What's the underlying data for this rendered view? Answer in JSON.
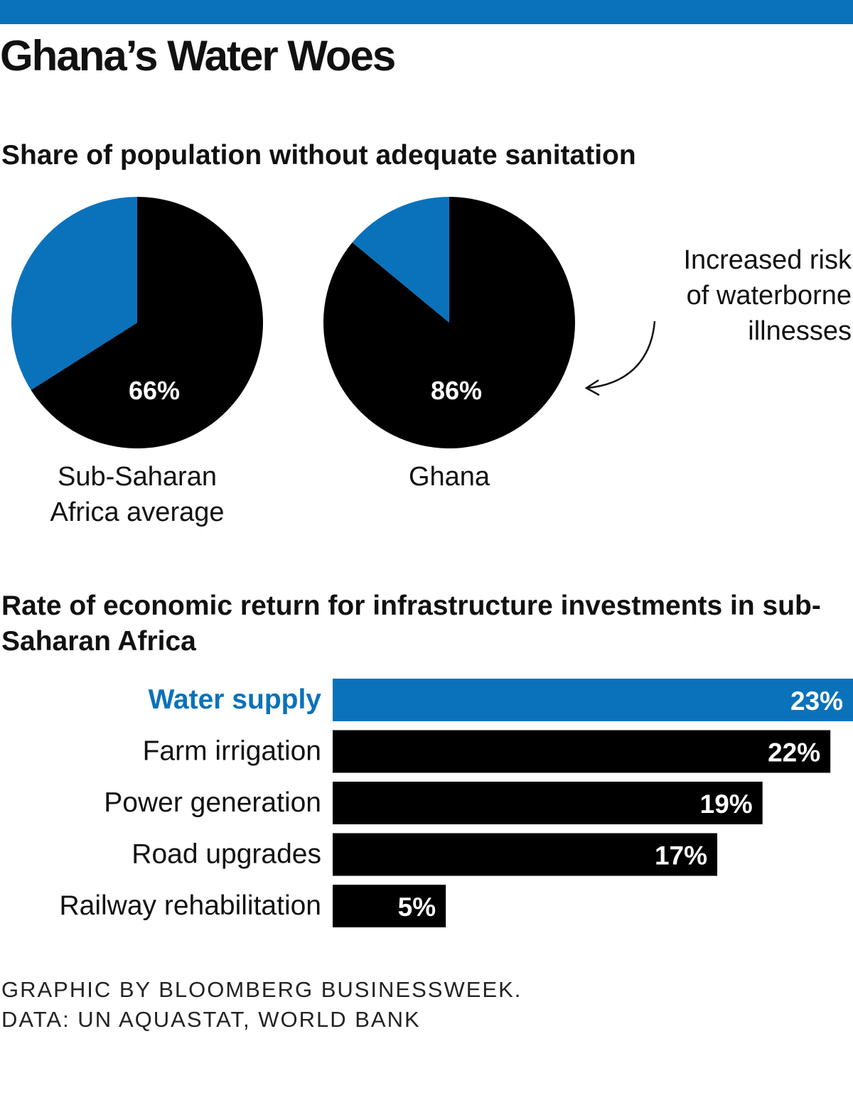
{
  "title": "Ghana’s Water Woes",
  "colors": {
    "accent": "#0a72bb",
    "dark": "#000000",
    "label_text": "#ffffff"
  },
  "chart_data": [
    {
      "type": "pie",
      "title": "Share of population without adequate sanitation",
      "series": [
        {
          "name": "Sub-Saharan Africa average",
          "name_lines": [
            "Sub-Saharan",
            "Africa average"
          ],
          "value": 66,
          "label": "66%"
        },
        {
          "name": "Ghana",
          "name_lines": [
            "Ghana"
          ],
          "value": 86,
          "label": "86%"
        }
      ],
      "annotation": {
        "lines": [
          "Increased risk",
          "of waterborne",
          "illnesses"
        ]
      }
    },
    {
      "type": "bar",
      "title": "Rate of economic return for infrastructure investments in sub-Saharan Africa",
      "categories": [
        "Water supply",
        "Farm irrigation",
        "Power generation",
        "Road upgrades",
        "Railway rehabilitation"
      ],
      "values": [
        23,
        22,
        19,
        17,
        5
      ],
      "labels": [
        "23%",
        "22%",
        "19%",
        "17%",
        "5%"
      ],
      "highlight": "Water supply"
    }
  ],
  "footer": {
    "line1": "GRAPHIC BY BLOOMBERG BUSINESSWEEK.",
    "line2": "DATA: UN AQUASTAT, WORLD BANK"
  }
}
